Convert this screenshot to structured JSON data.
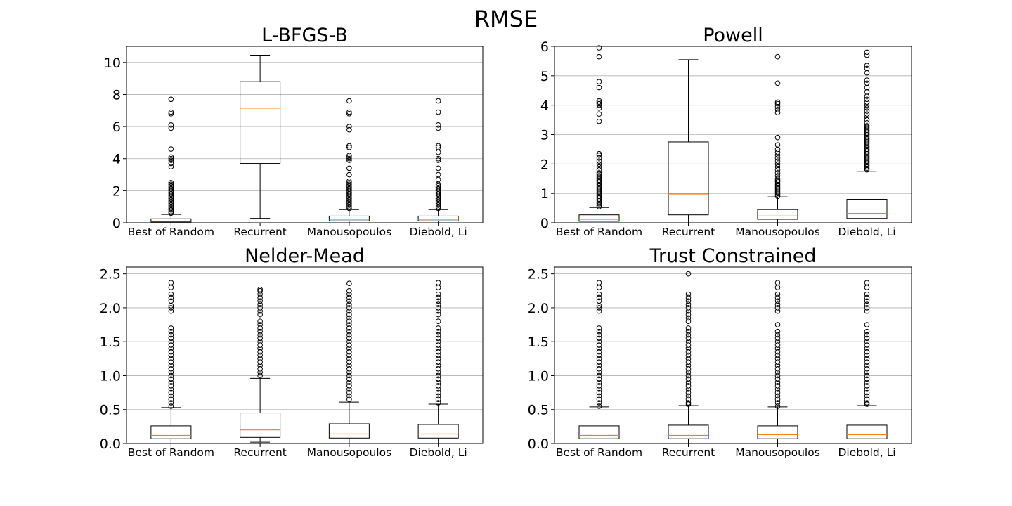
{
  "figure": {
    "suptitle": "RMSE"
  },
  "colors": {
    "median": "#ff7f0e",
    "box": "#000000",
    "grid": "#b0b0b0",
    "background": "#ffffff"
  },
  "chart_data": [
    {
      "type": "box",
      "title": "L-BFGS-B",
      "categories": [
        "Best of Random",
        "Recurrent",
        "Manousopoulos",
        "Diebold, Li"
      ],
      "ylim": [
        0,
        11
      ],
      "yticks": [
        0,
        2,
        4,
        6,
        8,
        10
      ],
      "ytick_labels": [
        "0",
        "2",
        "4",
        "6",
        "8",
        "10"
      ],
      "grid": "y",
      "boxes": [
        {
          "whislo": 0.0,
          "q1": 0.05,
          "med": 0.1,
          "q3": 0.25,
          "whishi": 0.52,
          "fliers": [
            0.6,
            0.7,
            0.8,
            0.9,
            1.0,
            1.1,
            1.2,
            1.3,
            1.4,
            1.5,
            1.6,
            1.7,
            1.8,
            1.9,
            2.0,
            2.1,
            2.2,
            2.3,
            2.4,
            2.5,
            3.5,
            3.7,
            3.9,
            4.0,
            4.1,
            4.6,
            5.9,
            6.1,
            6.8,
            6.9,
            7.7
          ]
        },
        {
          "whislo": 0.28,
          "q1": 3.7,
          "med": 7.15,
          "q3": 8.8,
          "whishi": 10.45,
          "fliers": []
        },
        {
          "whislo": 0.0,
          "q1": 0.12,
          "med": 0.22,
          "q3": 0.42,
          "whishi": 0.82,
          "fliers": [
            0.9,
            1.0,
            1.1,
            1.2,
            1.3,
            1.4,
            1.5,
            1.6,
            1.7,
            1.8,
            1.9,
            2.0,
            2.1,
            2.2,
            2.3,
            2.4,
            2.5,
            2.6,
            3.0,
            3.4,
            3.9,
            4.0,
            4.1,
            4.2,
            4.7,
            4.8,
            5.8,
            6.0,
            6.8,
            6.9,
            7.6
          ]
        },
        {
          "whislo": 0.0,
          "q1": 0.12,
          "med": 0.22,
          "q3": 0.42,
          "whishi": 0.82,
          "fliers": [
            0.9,
            1.0,
            1.1,
            1.2,
            1.3,
            1.4,
            1.5,
            1.6,
            1.7,
            1.8,
            1.9,
            2.0,
            2.1,
            2.2,
            2.3,
            2.4,
            2.7,
            3.0,
            3.4,
            3.9,
            4.0,
            4.4,
            4.7,
            4.8,
            5.9,
            6.1,
            6.9,
            7.6
          ]
        }
      ]
    },
    {
      "type": "box",
      "title": "Powell",
      "categories": [
        "Best of Random",
        "Recurrent",
        "Manousopoulos",
        "Diebold, Li"
      ],
      "ylim": [
        0,
        6
      ],
      "yticks": [
        0,
        1,
        2,
        3,
        4,
        5,
        6
      ],
      "ytick_labels": [
        "0",
        "1",
        "2",
        "3",
        "4",
        "5",
        "6"
      ],
      "grid": "y",
      "boxes": [
        {
          "whislo": 0.0,
          "q1": 0.05,
          "med": 0.12,
          "q3": 0.27,
          "whishi": 0.52,
          "fliers": [
            0.55,
            0.6,
            0.65,
            0.7,
            0.75,
            0.8,
            0.85,
            0.9,
            0.95,
            1.0,
            1.05,
            1.1,
            1.15,
            1.2,
            1.25,
            1.3,
            1.35,
            1.4,
            1.45,
            1.5,
            1.55,
            1.6,
            1.65,
            1.7,
            1.8,
            1.9,
            2.0,
            2.1,
            2.2,
            2.3,
            2.35,
            3.45,
            3.7,
            3.9,
            4.0,
            4.05,
            4.1,
            4.15,
            4.6,
            4.8,
            5.65,
            5.95
          ]
        },
        {
          "whislo": 0.0,
          "q1": 0.27,
          "med": 0.98,
          "q3": 2.75,
          "whishi": 5.55,
          "fliers": []
        },
        {
          "whislo": 0.0,
          "q1": 0.12,
          "med": 0.23,
          "q3": 0.45,
          "whishi": 0.88,
          "fliers": [
            0.9,
            0.95,
            1.0,
            1.05,
            1.1,
            1.15,
            1.2,
            1.25,
            1.3,
            1.35,
            1.4,
            1.45,
            1.5,
            1.6,
            1.7,
            1.8,
            1.9,
            2.0,
            2.1,
            2.2,
            2.3,
            2.4,
            2.5,
            2.65,
            2.9,
            3.75,
            3.85,
            3.95,
            4.05,
            4.1,
            4.75,
            5.65
          ]
        },
        {
          "whislo": 0.0,
          "q1": 0.15,
          "med": 0.32,
          "q3": 0.8,
          "whishi": 1.75,
          "fliers": [
            1.8,
            1.85,
            1.9,
            1.95,
            2.0,
            2.05,
            2.1,
            2.15,
            2.2,
            2.25,
            2.3,
            2.35,
            2.4,
            2.45,
            2.5,
            2.55,
            2.6,
            2.65,
            2.7,
            2.75,
            2.8,
            2.85,
            2.9,
            2.95,
            3.0,
            3.05,
            3.1,
            3.15,
            3.2,
            3.25,
            3.3,
            3.4,
            3.5,
            3.6,
            3.7,
            3.8,
            3.9,
            4.0,
            4.1,
            4.2,
            4.3,
            4.45,
            4.6,
            4.75,
            4.85,
            5.1,
            5.25,
            5.35,
            5.7,
            5.8
          ]
        }
      ]
    },
    {
      "type": "box",
      "title": "Nelder-Mead",
      "categories": [
        "Best of Random",
        "Recurrent",
        "Manousopoulos",
        "Diebold, Li"
      ],
      "ylim": [
        0,
        2.6
      ],
      "yticks": [
        0,
        0.5,
        1.0,
        1.5,
        2.0,
        2.5
      ],
      "ytick_labels": [
        "0.0",
        "0.5",
        "1.0",
        "1.5",
        "2.0",
        "2.5"
      ],
      "grid": "y",
      "boxes": [
        {
          "whislo": 0.0,
          "q1": 0.07,
          "med": 0.12,
          "q3": 0.26,
          "whishi": 0.53,
          "fliers": [
            0.55,
            0.6,
            0.65,
            0.7,
            0.75,
            0.8,
            0.85,
            0.9,
            0.95,
            1.0,
            1.05,
            1.1,
            1.15,
            1.2,
            1.25,
            1.3,
            1.35,
            1.4,
            1.45,
            1.5,
            1.55,
            1.6,
            1.65,
            1.7,
            1.95,
            2.0,
            2.03,
            2.1,
            2.15,
            2.2,
            2.3,
            2.37
          ]
        },
        {
          "whislo": 0.02,
          "q1": 0.09,
          "med": 0.2,
          "q3": 0.45,
          "whishi": 0.96,
          "fliers": [
            1.0,
            1.05,
            1.1,
            1.15,
            1.2,
            1.25,
            1.3,
            1.35,
            1.4,
            1.45,
            1.5,
            1.55,
            1.6,
            1.65,
            1.7,
            1.75,
            1.8,
            1.9,
            1.95,
            2.0,
            2.05,
            2.1,
            2.15,
            2.2,
            2.25,
            2.27
          ]
        },
        {
          "whislo": 0.0,
          "q1": 0.08,
          "med": 0.14,
          "q3": 0.29,
          "whishi": 0.61,
          "fliers": [
            0.65,
            0.7,
            0.75,
            0.8,
            0.85,
            0.9,
            0.95,
            1.0,
            1.05,
            1.1,
            1.15,
            1.2,
            1.25,
            1.3,
            1.35,
            1.4,
            1.45,
            1.5,
            1.55,
            1.6,
            1.65,
            1.7,
            1.75,
            1.8,
            1.85,
            1.9,
            1.95,
            2.0,
            2.05,
            2.1,
            2.15,
            2.2,
            2.25,
            2.36
          ]
        },
        {
          "whislo": 0.0,
          "q1": 0.08,
          "med": 0.14,
          "q3": 0.28,
          "whishi": 0.58,
          "fliers": [
            0.6,
            0.65,
            0.7,
            0.75,
            0.8,
            0.85,
            0.9,
            0.95,
            1.0,
            1.05,
            1.1,
            1.15,
            1.2,
            1.25,
            1.3,
            1.35,
            1.4,
            1.45,
            1.5,
            1.55,
            1.6,
            1.65,
            1.7,
            1.8,
            1.9,
            1.95,
            2.0,
            2.05,
            2.1,
            2.15,
            2.2,
            2.3,
            2.37
          ]
        }
      ]
    },
    {
      "type": "box",
      "title": "Trust Constrained",
      "categories": [
        "Best of Random",
        "Recurrent",
        "Manousopoulos",
        "Diebold, Li"
      ],
      "ylim": [
        0,
        2.6
      ],
      "yticks": [
        0,
        0.5,
        1.0,
        1.5,
        2.0,
        2.5
      ],
      "ytick_labels": [
        "0.0",
        "0.5",
        "1.0",
        "1.5",
        "2.0",
        "2.5"
      ],
      "grid": "y",
      "boxes": [
        {
          "whislo": 0.0,
          "q1": 0.07,
          "med": 0.12,
          "q3": 0.26,
          "whishi": 0.54,
          "fliers": [
            0.55,
            0.6,
            0.65,
            0.7,
            0.75,
            0.8,
            0.85,
            0.9,
            0.95,
            1.0,
            1.05,
            1.1,
            1.15,
            1.2,
            1.25,
            1.3,
            1.35,
            1.4,
            1.45,
            1.5,
            1.55,
            1.6,
            1.65,
            1.7,
            1.95,
            2.0,
            2.03,
            2.1,
            2.15,
            2.2,
            2.3,
            2.37
          ]
        },
        {
          "whislo": 0.0,
          "q1": 0.07,
          "med": 0.12,
          "q3": 0.27,
          "whishi": 0.56,
          "fliers": [
            0.58,
            0.6,
            0.65,
            0.7,
            0.75,
            0.8,
            0.85,
            0.9,
            0.95,
            1.0,
            1.05,
            1.1,
            1.15,
            1.2,
            1.25,
            1.3,
            1.35,
            1.4,
            1.45,
            1.5,
            1.55,
            1.6,
            1.65,
            1.7,
            1.8,
            1.85,
            1.9,
            1.95,
            2.0,
            2.05,
            2.1,
            2.15,
            2.2,
            2.5
          ]
        },
        {
          "whislo": 0.0,
          "q1": 0.07,
          "med": 0.13,
          "q3": 0.26,
          "whishi": 0.54,
          "fliers": [
            0.55,
            0.6,
            0.65,
            0.7,
            0.75,
            0.8,
            0.85,
            0.9,
            0.95,
            1.0,
            1.05,
            1.1,
            1.15,
            1.2,
            1.25,
            1.3,
            1.35,
            1.4,
            1.45,
            1.5,
            1.55,
            1.6,
            1.65,
            1.75,
            1.95,
            2.0,
            2.05,
            2.1,
            2.15,
            2.2,
            2.3,
            2.37
          ]
        },
        {
          "whislo": 0.0,
          "q1": 0.07,
          "med": 0.13,
          "q3": 0.27,
          "whishi": 0.56,
          "fliers": [
            0.58,
            0.6,
            0.65,
            0.7,
            0.75,
            0.8,
            0.85,
            0.9,
            0.95,
            1.0,
            1.05,
            1.1,
            1.15,
            1.2,
            1.25,
            1.3,
            1.35,
            1.4,
            1.45,
            1.5,
            1.55,
            1.6,
            1.65,
            1.75,
            1.95,
            2.0,
            2.05,
            2.1,
            2.15,
            2.2,
            2.3,
            2.37
          ]
        }
      ]
    }
  ]
}
